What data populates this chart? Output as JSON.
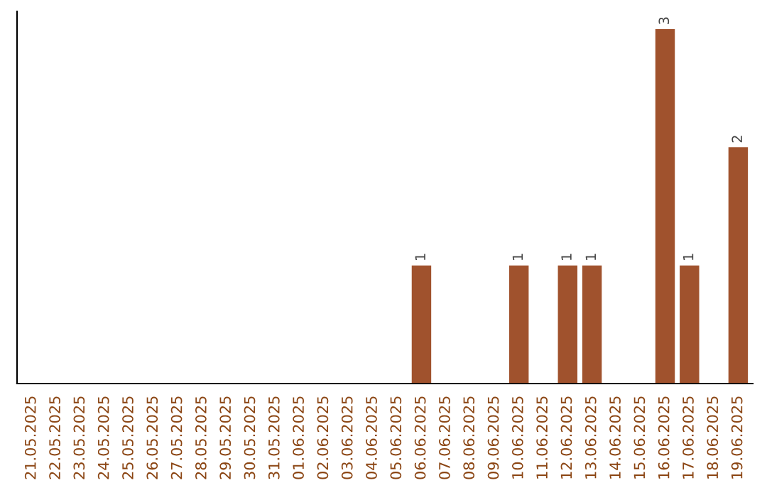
{
  "chart_data": {
    "type": "bar",
    "categories": [
      "21.05.2025",
      "22.05.2025",
      "23.05.2025",
      "24.05.2025",
      "25.05.2025",
      "26.05.2025",
      "27.05.2025",
      "28.05.2025",
      "29.05.2025",
      "30.05.2025",
      "31.05.2025",
      "01.06.2025",
      "02.06.2025",
      "03.06.2025",
      "04.06.2025",
      "05.06.2025",
      "06.06.2025",
      "07.06.2025",
      "08.06.2025",
      "09.06.2025",
      "10.06.2025",
      "11.06.2025",
      "12.06.2025",
      "13.06.2025",
      "14.06.2025",
      "15.06.2025",
      "16.06.2025",
      "17.06.2025",
      "18.06.2025",
      "19.06.2025"
    ],
    "values": [
      null,
      null,
      null,
      null,
      null,
      null,
      null,
      null,
      null,
      null,
      null,
      null,
      null,
      null,
      null,
      null,
      1,
      null,
      null,
      null,
      1,
      null,
      1,
      1,
      null,
      null,
      3,
      1,
      null,
      2
    ],
    "value_labels": [
      null,
      null,
      null,
      null,
      null,
      null,
      null,
      null,
      null,
      null,
      null,
      null,
      null,
      null,
      null,
      null,
      "1",
      null,
      null,
      null,
      "1",
      null,
      "1",
      "1",
      null,
      null,
      "3",
      "1",
      null,
      "2"
    ],
    "color": "#a0522d",
    "tick_labels": "x",
    "grid": false,
    "legend": false
  }
}
